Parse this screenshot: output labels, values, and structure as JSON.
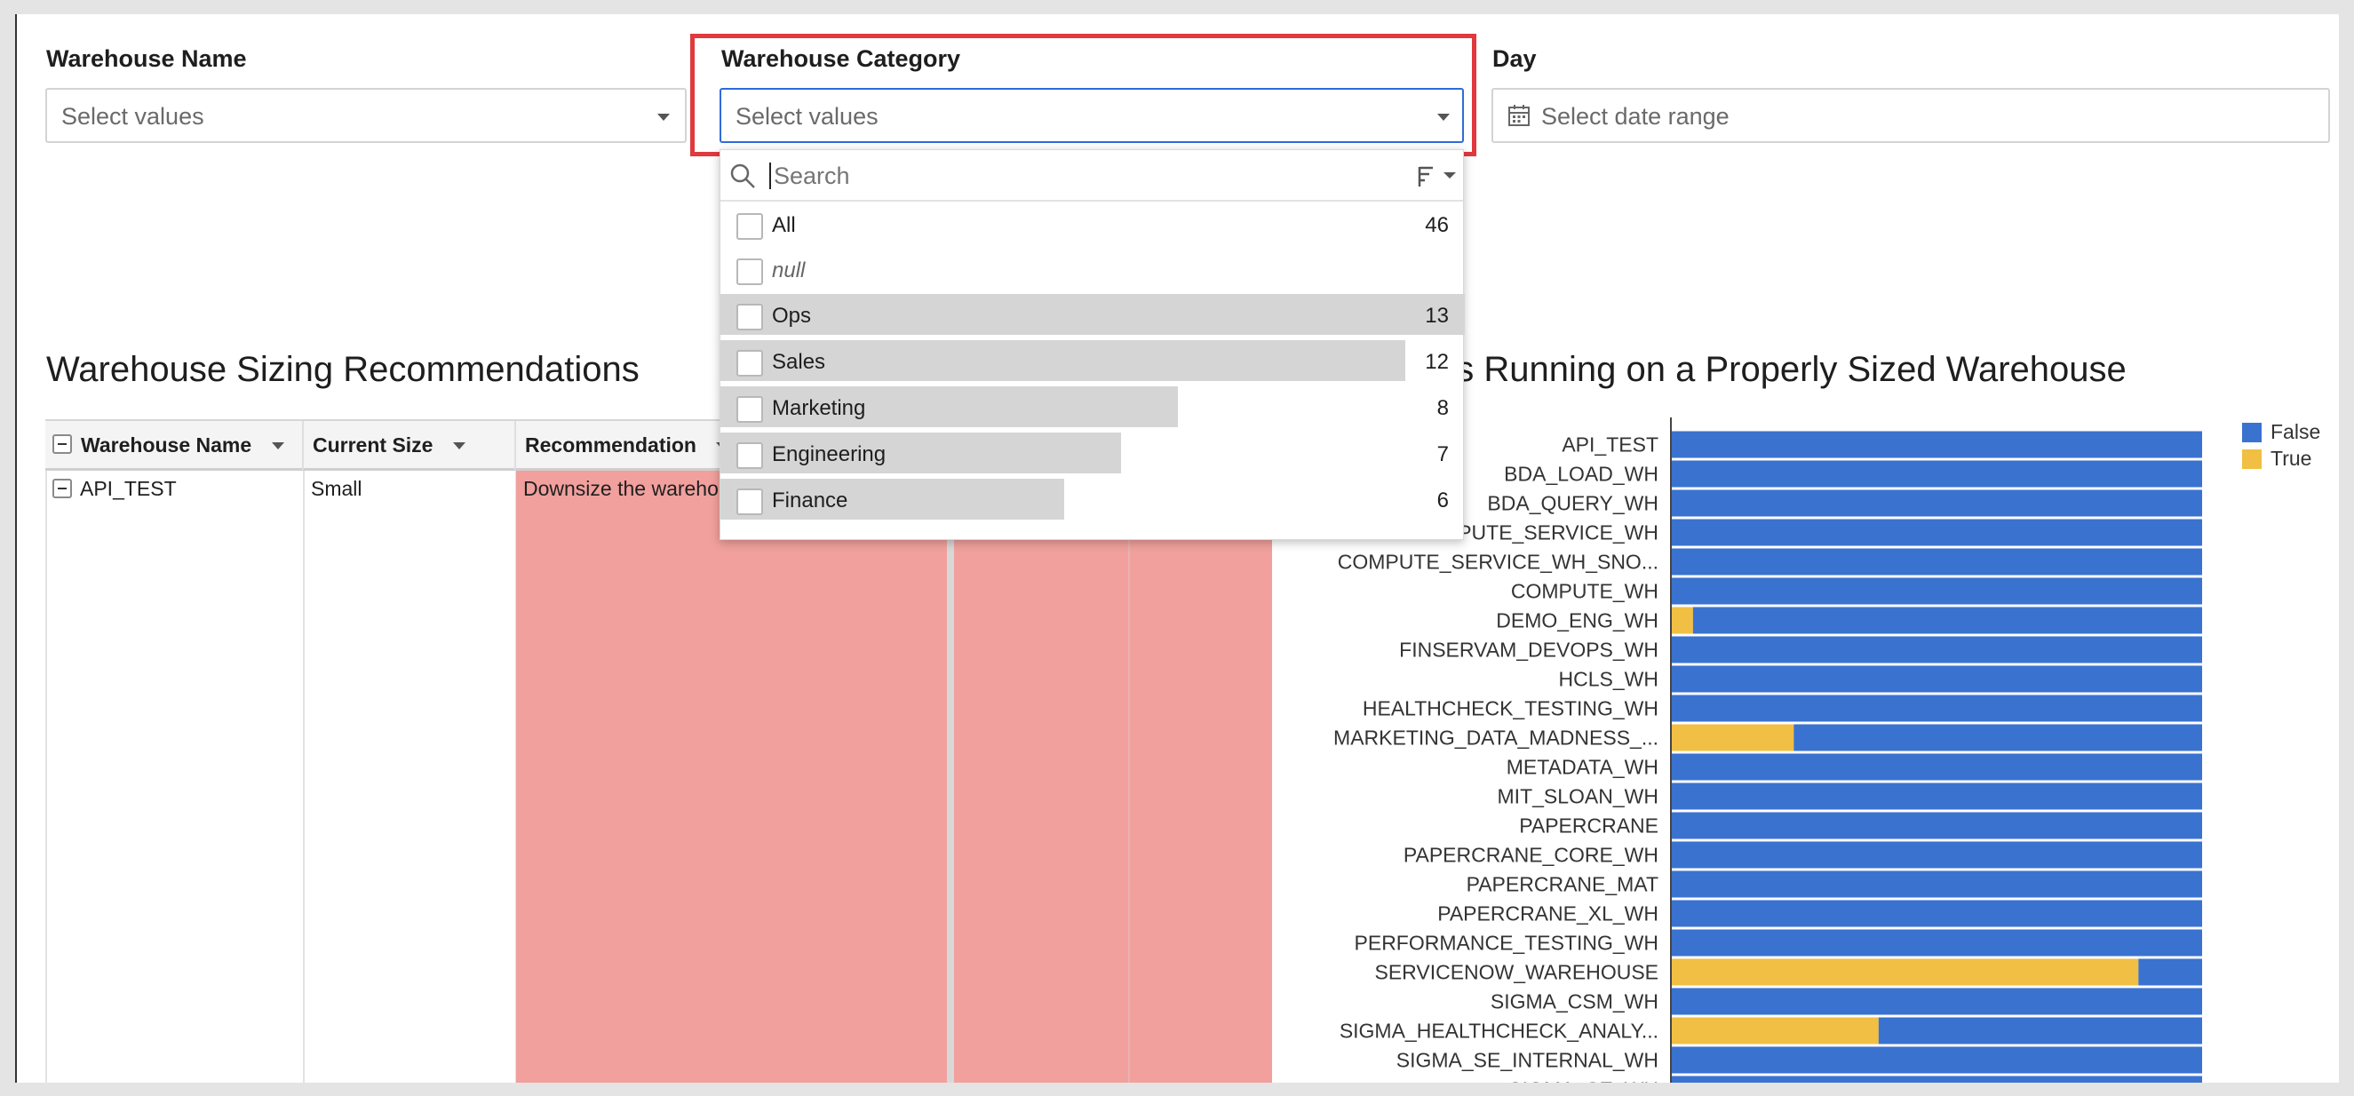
{
  "filters": {
    "warehouse_name": {
      "label": "Warehouse Name",
      "placeholder": "Select values"
    },
    "warehouse_category": {
      "label": "Warehouse Category",
      "placeholder": "Select values"
    },
    "day": {
      "label": "Day",
      "placeholder": "Select date range"
    }
  },
  "dropdown": {
    "search_placeholder": "Search",
    "options": [
      {
        "label": "All",
        "count": "46",
        "fraction": 0
      },
      {
        "label": "null",
        "count": "",
        "fraction": 0
      },
      {
        "label": "Ops",
        "count": "13",
        "fraction": 1.0
      },
      {
        "label": "Sales",
        "count": "12",
        "fraction": 0.92
      },
      {
        "label": "Marketing",
        "count": "8",
        "fraction": 0.615
      },
      {
        "label": "Engineering",
        "count": "7",
        "fraction": 0.538
      },
      {
        "label": "Finance",
        "count": "6",
        "fraction": 0.462
      }
    ]
  },
  "table": {
    "title": "Warehouse Sizing Recommendations",
    "headers": [
      "Warehouse Name",
      "Current Size",
      "Recommendation"
    ],
    "rows": [
      {
        "warehouse": "API_TEST",
        "size": "Small",
        "recommendation": "Downsize the wareho"
      }
    ],
    "highlight_color": "#f1a09d"
  },
  "chart_title_fragment": "es Running on a Properly Sized Warehouse",
  "chart_data": {
    "type": "bar",
    "orientation": "horizontal",
    "stacked": true,
    "percent": true,
    "categories": [
      "API_TEST",
      "BDA_LOAD_WH",
      "BDA_QUERY_WH",
      "COMPUTE_SERVICE_WH",
      "COMPUTE_SERVICE_WH_SNO...",
      "COMPUTE_WH",
      "DEMO_ENG_WH",
      "FINSERVAM_DEVOPS_WH",
      "HCLS_WH",
      "HEALTHCHECK_TESTING_WH",
      "MARKETING_DATA_MADNESS_...",
      "METADATA_WH",
      "MIT_SLOAN_WH",
      "PAPERCRANE",
      "PAPERCRANE_CORE_WH",
      "PAPERCRANE_MAT",
      "PAPERCRANE_XL_WH",
      "PERFORMANCE_TESTING_WH",
      "SERVICENOW_WAREHOUSE",
      "SIGMA_CSM_WH",
      "SIGMA_HEALTHCHECK_ANALY...",
      "SIGMA_SE_INTERNAL_WH",
      "SIGMA_SE_WH"
    ],
    "series": [
      {
        "name": "True",
        "color": "#f0bf43",
        "values": [
          0,
          0,
          0,
          0,
          0,
          0,
          0.04,
          0,
          0,
          0,
          0.23,
          0,
          0,
          0,
          0,
          0,
          0,
          0,
          0.88,
          0,
          0.39,
          0,
          0
        ]
      },
      {
        "name": "False",
        "color": "#3a72d0",
        "values": [
          1,
          1,
          1,
          1,
          1,
          1,
          0.96,
          1,
          1,
          1,
          0.77,
          1,
          1,
          1,
          1,
          1,
          1,
          1,
          0.12,
          1,
          0.61,
          1,
          1
        ]
      }
    ],
    "legend": [
      "False",
      "True"
    ],
    "legend_position": "top-right"
  }
}
